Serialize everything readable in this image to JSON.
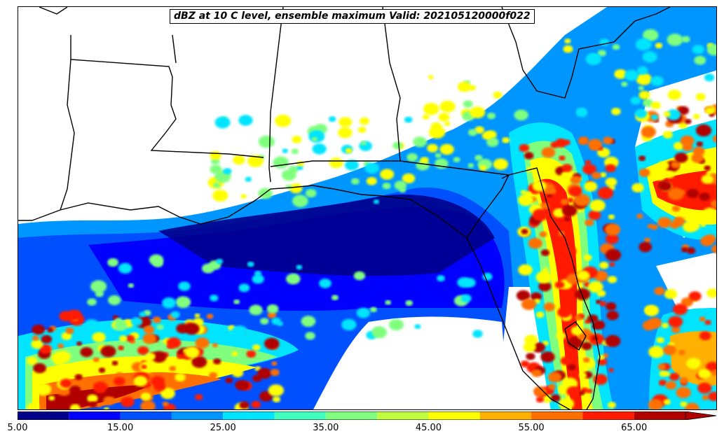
{
  "title": "dBZ at 10 C level, ensemble maximum Valid: 202105120000f022",
  "colorbar": {
    "levels": [
      5,
      10,
      15,
      20,
      25,
      30,
      35,
      40,
      45,
      50,
      55,
      60,
      65,
      70
    ],
    "colors": [
      "#00008b",
      "#0000ff",
      "#0050ff",
      "#0096ff",
      "#00e4ff",
      "#40ffbf",
      "#80ff7f",
      "#bfff40",
      "#ffff00",
      "#ffb000",
      "#ff7000",
      "#ff1a00",
      "#b00000"
    ],
    "extend": "max",
    "tick_labels": [
      "5.00",
      "15.00",
      "25.00",
      "35.00",
      "45.00",
      "55.00",
      "65.00"
    ]
  },
  "colors": {
    "background": "#ffffff",
    "border_lines": "#000000"
  }
}
